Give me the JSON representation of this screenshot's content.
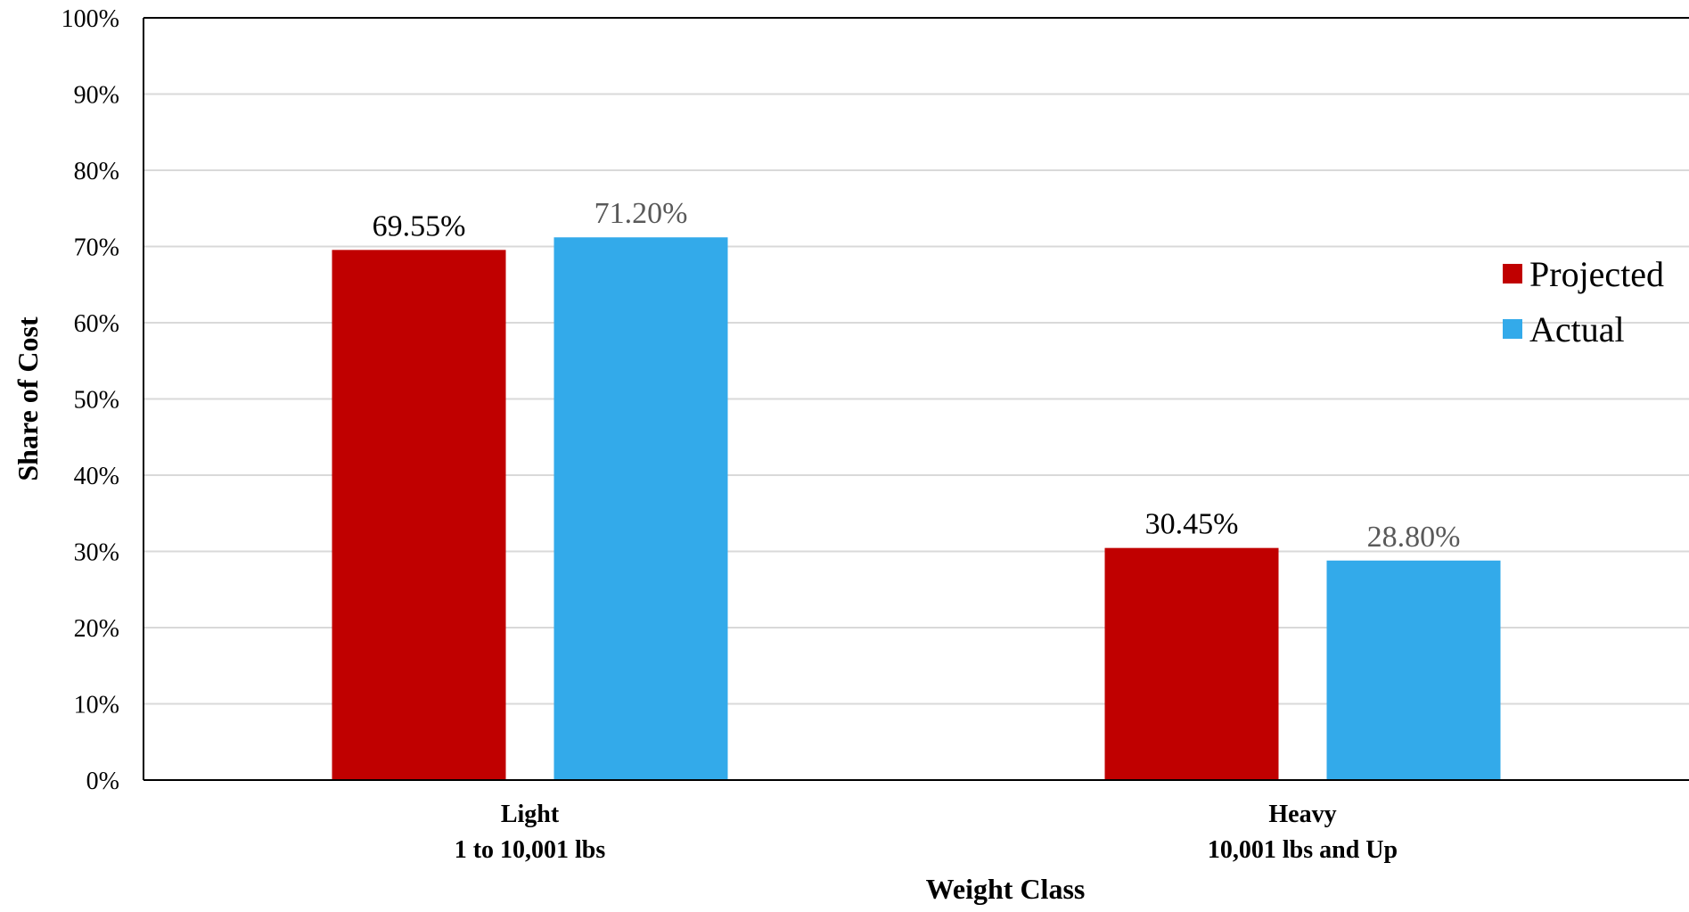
{
  "chart_data": {
    "type": "bar",
    "categories": [
      [
        "Light",
        "1 to 10,001 lbs"
      ],
      [
        "Heavy",
        "10,001 lbs and Up"
      ]
    ],
    "series": [
      {
        "name": "Projected",
        "color": "#c00000",
        "label_color": "#000000",
        "values": [
          69.55,
          30.45
        ],
        "labels": [
          "69.55%",
          "30.45%"
        ]
      },
      {
        "name": "Actual",
        "color": "#33aaea",
        "label_color": "#595959",
        "values": [
          71.2,
          28.8
        ],
        "labels": [
          "71.20%",
          "28.80%"
        ]
      }
    ],
    "xlabel": "Weight Class",
    "ylabel": "Share of Cost",
    "ylim": [
      0,
      100
    ],
    "yticks": [
      0,
      10,
      20,
      30,
      40,
      50,
      60,
      70,
      80,
      90,
      100
    ],
    "ytick_labels": [
      "0%",
      "10%",
      "20%",
      "30%",
      "40%",
      "50%",
      "60%",
      "70%",
      "80%",
      "90%",
      "100%"
    ],
    "grid": true,
    "legend_position": "right"
  }
}
